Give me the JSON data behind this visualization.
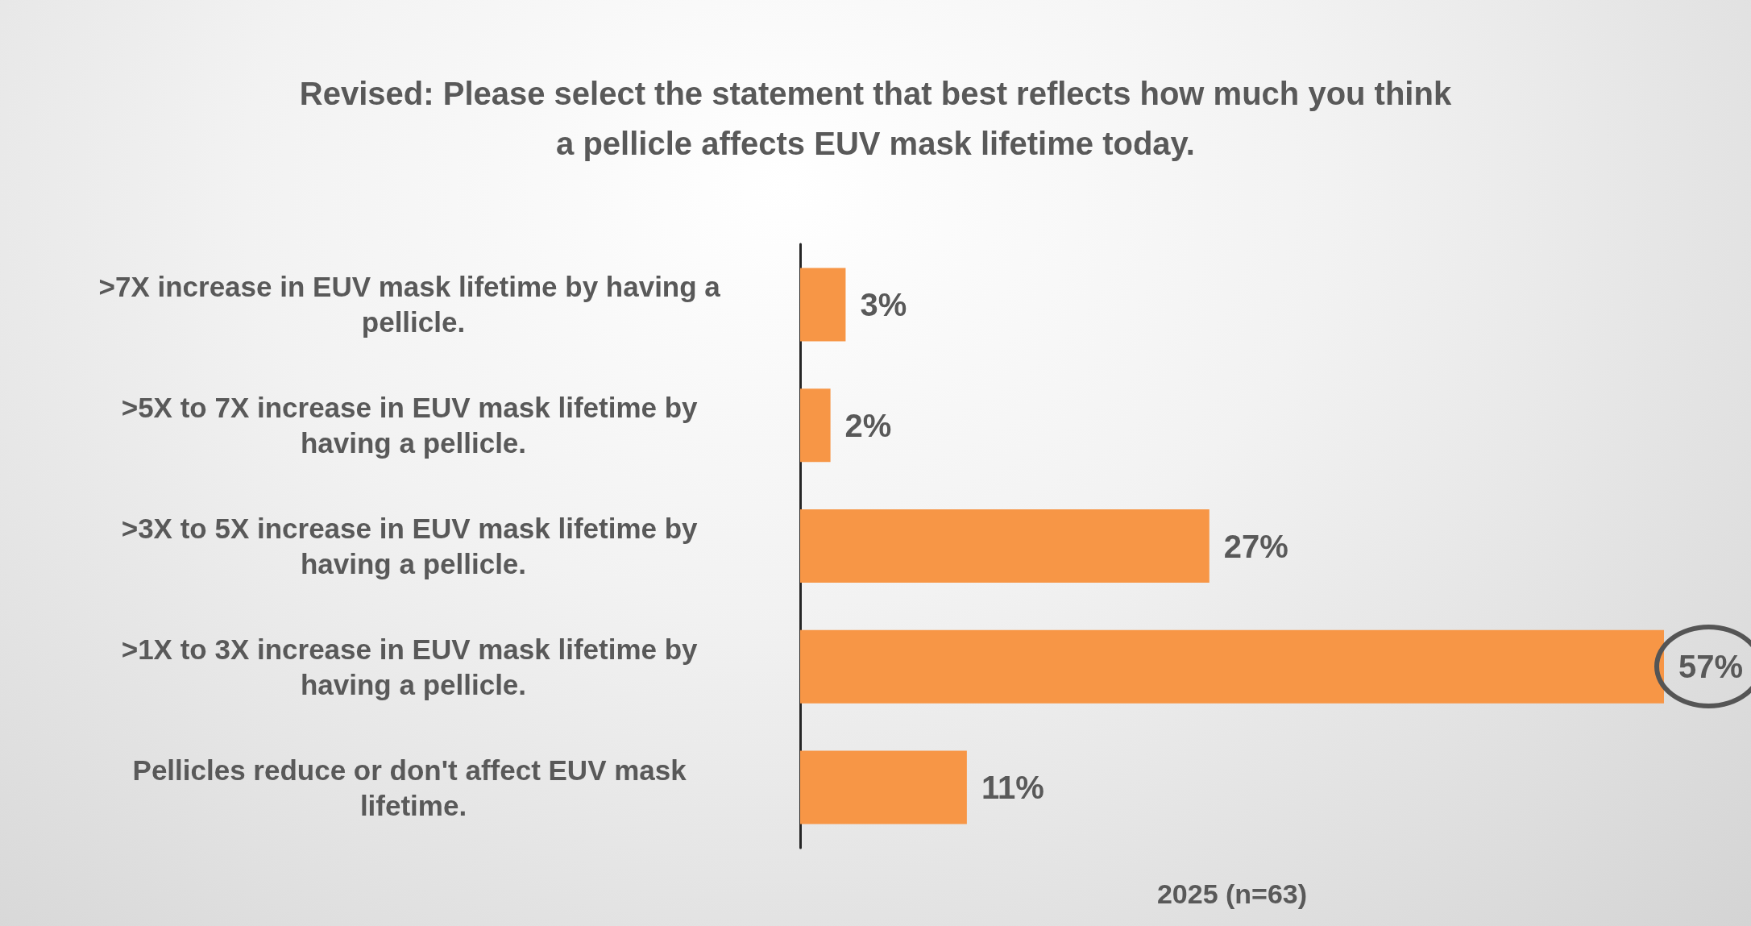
{
  "chart_data": {
    "type": "bar",
    "orientation": "horizontal",
    "title": "Revised: Please select the statement that best reflects how much you think\na pellicle affects EUV mask lifetime today.",
    "xlabel": "2025 (n=63)",
    "categories": [
      ">7X increase in EUV mask lifetime by having a pellicle.",
      ">5X to 7X increase in EUV mask lifetime by having a pellicle.",
      ">3X to 5X increase in EUV mask lifetime by having a pellicle.",
      ">1X to 3X increase in EUV mask lifetime by having a pellicle.",
      "Pellicles reduce or don't affect EUV mask lifetime."
    ],
    "values": [
      3,
      2,
      27,
      57,
      11
    ],
    "value_labels": [
      "3%",
      "2%",
      "27%",
      "57%",
      "11%"
    ],
    "color": "#f79646",
    "grid": false
  }
}
